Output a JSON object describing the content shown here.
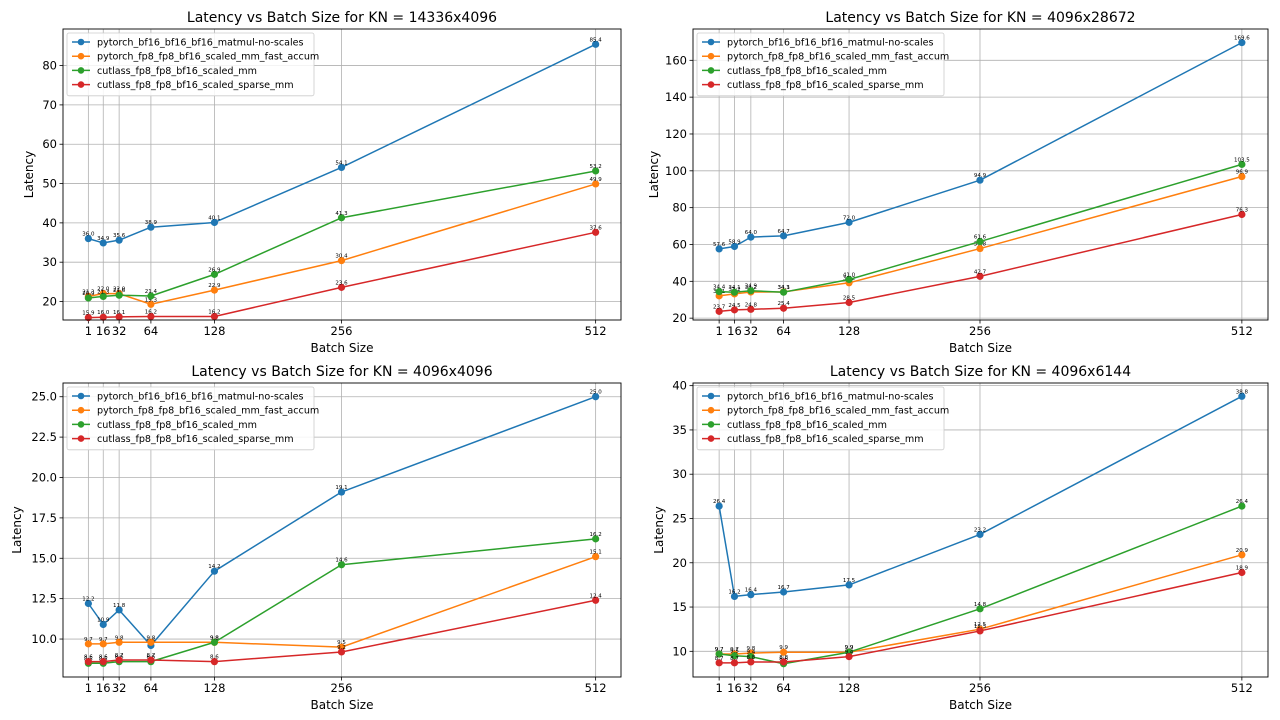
{
  "colors": {
    "pytorch_bf16_bf16_bf16_matmul-no-scales": "#1f77b4",
    "pytorch_fp8_fp8_bf16_scaled_mm_fast_accum": "#ff7f0e",
    "cutlass_fp8_fp8_bf16_scaled_mm": "#2ca02c",
    "cutlass_fp8_fp8_bf16_scaled_sparse_mm": "#d62728"
  },
  "chart_data": [
    {
      "type": "line",
      "title": "Latency vs Batch Size for KN = 14336x4096",
      "xlabel": "Batch Size",
      "ylabel": "Latency",
      "x": [
        1,
        16,
        32,
        64,
        128,
        256,
        512
      ],
      "xticks": [
        "1",
        "16",
        "32",
        "64",
        "128",
        "256",
        "512"
      ],
      "ylim": [
        15.3,
        89.3
      ],
      "yticks": [
        20,
        30,
        40,
        50,
        60,
        70,
        80
      ],
      "ytick_labels": [
        "20",
        "30",
        "40",
        "50",
        "60",
        "70",
        "80"
      ],
      "grid": true,
      "legend": "upper-left",
      "series": [
        {
          "name": "pytorch_bf16_bf16_bf16_matmul-no-scales",
          "values": [
            36.0,
            34.9,
            35.6,
            38.9,
            40.1,
            54.1,
            85.4
          ],
          "labels": [
            "36.0",
            "34.9",
            "35.6",
            "38.9",
            "40.1",
            "54.1",
            "85.4"
          ]
        },
        {
          "name": "pytorch_fp8_fp8_bf16_scaled_mm_fast_accum",
          "values": [
            21.3,
            22.0,
            22.0,
            19.3,
            22.9,
            30.4,
            49.9
          ],
          "labels": [
            "21.3",
            "22.0",
            "22.0",
            "19.3",
            "22.9",
            "30.4",
            "49.9"
          ]
        },
        {
          "name": "cutlass_fp8_fp8_bf16_scaled_mm",
          "values": [
            20.9,
            21.3,
            21.6,
            21.4,
            26.9,
            41.3,
            53.2
          ],
          "labels": [
            "20.9",
            "21.3",
            "21.6",
            "21.4",
            "26.9",
            "41.3",
            "53.2"
          ]
        },
        {
          "name": "cutlass_fp8_fp8_bf16_scaled_sparse_mm",
          "values": [
            15.9,
            16.0,
            16.1,
            16.2,
            16.2,
            23.6,
            37.6
          ],
          "labels": [
            "15.9",
            "16.0",
            "16.1",
            "16.2",
            "16.2",
            "23.6",
            "37.6"
          ]
        }
      ]
    },
    {
      "type": "line",
      "title": "Latency vs Batch Size for KN = 4096x28672",
      "xlabel": "Batch Size",
      "ylabel": "Latency",
      "x": [
        1,
        16,
        32,
        64,
        128,
        256,
        512
      ],
      "xticks": [
        "1",
        "16",
        "32",
        "64",
        "128",
        "256",
        "512"
      ],
      "ylim": [
        19.0,
        177.0
      ],
      "yticks": [
        20,
        40,
        60,
        80,
        100,
        120,
        140,
        160
      ],
      "ytick_labels": [
        "20",
        "40",
        "60",
        "80",
        "100",
        "120",
        "140",
        "160"
      ],
      "grid": true,
      "legend": "upper-left",
      "series": [
        {
          "name": "pytorch_bf16_bf16_bf16_matmul-no-scales",
          "values": [
            57.6,
            58.9,
            64.0,
            64.7,
            72.0,
            94.9,
            169.6
          ],
          "labels": [
            "57.6",
            "58.9",
            "64.0",
            "64.7",
            "72.0",
            "94.9",
            "169.6"
          ]
        },
        {
          "name": "pytorch_fp8_fp8_bf16_scaled_mm_fast_accum",
          "values": [
            32.1,
            33.2,
            34.2,
            34.3,
            39.2,
            57.8,
            96.9
          ],
          "labels": [
            "32.1",
            "33.2",
            "34.2",
            "34.3",
            "39.2",
            "57.8",
            "96.9"
          ]
        },
        {
          "name": "cutlass_fp8_fp8_bf16_scaled_mm",
          "values": [
            34.4,
            34.1,
            34.9,
            34.1,
            41.0,
            61.6,
            103.5
          ],
          "labels": [
            "34.4",
            "34.1",
            "34.9",
            "34.1",
            "41.0",
            "61.6",
            "103.5"
          ]
        },
        {
          "name": "cutlass_fp8_fp8_bf16_scaled_sparse_mm",
          "values": [
            23.7,
            24.5,
            24.8,
            25.4,
            28.5,
            42.7,
            76.3
          ],
          "labels": [
            "23.7",
            "24.5",
            "24.8",
            "25.4",
            "28.5",
            "42.7",
            "76.3"
          ]
        }
      ]
    },
    {
      "type": "line",
      "title": "Latency vs Batch Size for KN = 4096x4096",
      "xlabel": "Batch Size",
      "ylabel": "Latency",
      "x": [
        1,
        16,
        32,
        64,
        128,
        256,
        512
      ],
      "xticks": [
        "1",
        "16",
        "32",
        "64",
        "128",
        "256",
        "512"
      ],
      "ylim": [
        7.65,
        25.85
      ],
      "yticks": [
        10.0,
        12.5,
        15.0,
        17.5,
        20.0,
        22.5,
        25.0
      ],
      "ytick_labels": [
        "10.0",
        "12.5",
        "15.0",
        "17.5",
        "20.0",
        "22.5",
        "25.0"
      ],
      "grid": true,
      "legend": "upper-left",
      "series": [
        {
          "name": "pytorch_bf16_bf16_bf16_matmul-no-scales",
          "values": [
            12.2,
            10.9,
            11.8,
            9.6,
            14.2,
            19.1,
            25.0
          ],
          "labels": [
            "12.2",
            "10.9",
            "11.8",
            "9.6",
            "14.2",
            "19.1",
            "25.0"
          ]
        },
        {
          "name": "pytorch_fp8_fp8_bf16_scaled_mm_fast_accum",
          "values": [
            9.7,
            9.7,
            9.8,
            9.8,
            9.8,
            9.5,
            15.1
          ],
          "labels": [
            "9.7",
            "9.7",
            "9.8",
            "9.8",
            "9.8",
            "9.5",
            "15.1"
          ]
        },
        {
          "name": "cutlass_fp8_fp8_bf16_scaled_mm",
          "values": [
            8.5,
            8.5,
            8.6,
            8.6,
            9.8,
            14.6,
            16.2
          ],
          "labels": [
            "8.5",
            "8.5",
            "8.6",
            "8.6",
            "9.8",
            "14.6",
            "16.2"
          ]
        },
        {
          "name": "cutlass_fp8_fp8_bf16_scaled_sparse_mm",
          "values": [
            8.6,
            8.6,
            8.7,
            8.7,
            8.6,
            9.2,
            12.4
          ],
          "labels": [
            "8.6",
            "8.6",
            "8.7",
            "8.7",
            "8.6",
            "9.2",
            "12.4"
          ]
        }
      ]
    },
    {
      "type": "line",
      "title": "Latency vs Batch Size for KN = 4096x6144",
      "xlabel": "Batch Size",
      "ylabel": "Latency",
      "x": [
        1,
        16,
        32,
        64,
        128,
        256,
        512
      ],
      "xticks": [
        "1",
        "16",
        "32",
        "64",
        "128",
        "256",
        "512"
      ],
      "ylim": [
        7.1,
        40.3
      ],
      "yticks": [
        10,
        15,
        20,
        25,
        30,
        35,
        40
      ],
      "ytick_labels": [
        "10",
        "15",
        "20",
        "25",
        "30",
        "35",
        "40"
      ],
      "grid": true,
      "legend": "upper-left",
      "series": [
        {
          "name": "pytorch_bf16_bf16_bf16_matmul-no-scales",
          "values": [
            26.4,
            16.2,
            16.4,
            16.7,
            17.5,
            23.2,
            38.8
          ],
          "labels": [
            "26.4",
            "16.2",
            "16.4",
            "16.7",
            "17.5",
            "23.2",
            "38.8"
          ]
        },
        {
          "name": "pytorch_fp8_fp8_bf16_scaled_mm_fast_accum",
          "values": [
            9.7,
            9.7,
            9.8,
            9.9,
            9.9,
            12.5,
            20.9
          ],
          "labels": [
            "9.7",
            "9.7",
            "9.8",
            "9.9",
            "9.9",
            "12.5",
            "20.9"
          ]
        },
        {
          "name": "cutlass_fp8_fp8_bf16_scaled_mm",
          "values": [
            9.7,
            9.5,
            9.4,
            8.6,
            9.9,
            14.8,
            26.4
          ],
          "labels": [
            "9.7",
            "9.5",
            "9.4",
            "8.6",
            "9.9",
            "14.8",
            "26.4"
          ]
        },
        {
          "name": "cutlass_fp8_fp8_bf16_scaled_sparse_mm",
          "values": [
            8.7,
            8.7,
            8.8,
            8.8,
            9.4,
            12.3,
            18.9
          ],
          "labels": [
            "8.7",
            "8.7",
            "8.8",
            "8.8",
            "9.4",
            "12.3",
            "18.9"
          ]
        }
      ]
    }
  ]
}
